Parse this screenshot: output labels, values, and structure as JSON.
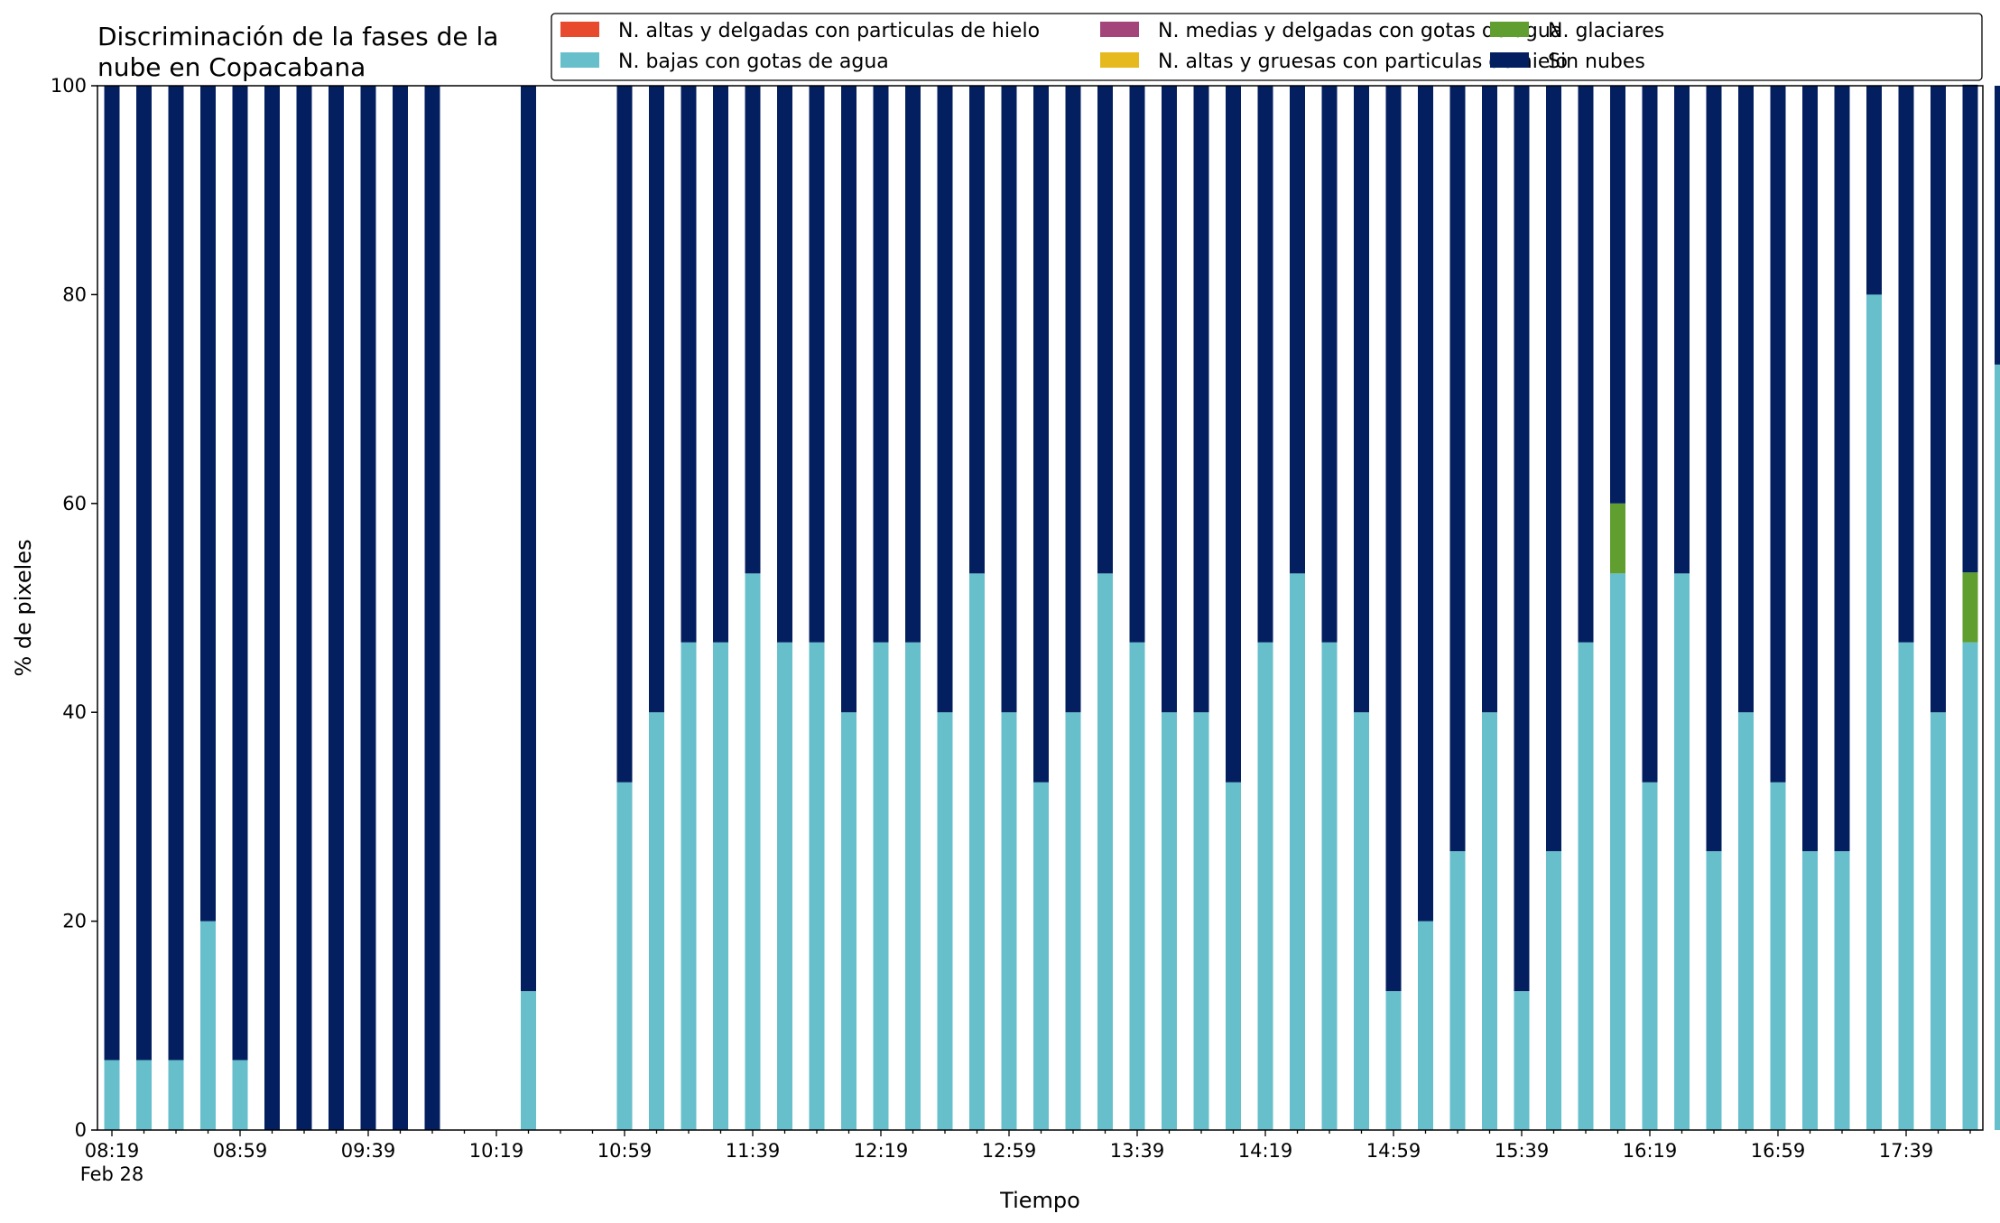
{
  "chart_data": {
    "type": "bar",
    "stacked": true,
    "title_lines": [
      "Discriminación de la fases de la",
      "nube en Copacabana"
    ],
    "xlabel": "Tiempo",
    "ylabel": "% de pixeles",
    "ylim": [
      0,
      100
    ],
    "yticks": [
      0,
      20,
      40,
      60,
      80,
      100
    ],
    "x_start": "08:19",
    "x_step_minutes": 10,
    "x_first_label_date": "Feb 28",
    "xtick_labels": [
      "08:19",
      "08:59",
      "09:39",
      "10:19",
      "10:59",
      "11:39",
      "12:19",
      "12:59",
      "13:39",
      "14:19",
      "14:59",
      "15:39",
      "16:19",
      "16:59",
      "17:39"
    ],
    "legend_position": "top-right",
    "grid": false,
    "series": [
      {
        "name": "N. altas y delgadas con particulas de hielo",
        "color": "#e84a2d",
        "values": [
          0,
          0,
          0,
          0,
          0,
          0,
          0,
          0,
          0,
          0,
          0,
          0,
          0,
          0,
          0,
          0,
          0,
          0,
          0,
          0,
          0,
          0,
          0,
          0,
          0,
          0,
          0,
          0,
          0,
          0,
          0,
          0,
          0,
          0,
          0,
          0,
          0,
          0,
          0,
          0,
          0,
          0,
          0,
          0,
          0,
          0,
          0,
          0,
          0,
          0,
          0,
          0,
          0,
          0,
          0,
          0,
          0,
          0,
          0
        ]
      },
      {
        "name": "N. altas y gruesas con particulas de hielo",
        "color": "#e6b91e",
        "values": [
          0,
          0,
          0,
          0,
          0,
          0,
          0,
          0,
          0,
          0,
          0,
          0,
          0,
          0,
          0,
          0,
          0,
          0,
          0,
          0,
          0,
          0,
          0,
          0,
          0,
          0,
          0,
          0,
          0,
          0,
          0,
          0,
          0,
          0,
          0,
          0,
          0,
          0,
          0,
          0,
          0,
          0,
          0,
          0,
          0,
          0,
          0,
          0,
          0,
          0,
          0,
          0,
          0,
          0,
          0,
          0,
          0,
          0,
          0
        ]
      },
      {
        "name": "N. bajas con gotas de agua",
        "color": "#67bfcb",
        "values": [
          6.7,
          6.7,
          6.7,
          20,
          6.7,
          0,
          0,
          0,
          0,
          0,
          0,
          null,
          null,
          13.3,
          null,
          null,
          33.3,
          40,
          46.7,
          46.7,
          53.3,
          46.7,
          46.7,
          40,
          46.7,
          46.7,
          40,
          53.3,
          40,
          33.3,
          40,
          53.3,
          46.7,
          40,
          40,
          33.3,
          46.7,
          53.3,
          46.7,
          40,
          13.3,
          20,
          26.7,
          40,
          13.3,
          26.7,
          46.7,
          53.3,
          33.3,
          53.3,
          26.7,
          40,
          33.3,
          26.7,
          26.7,
          80,
          46.7,
          40,
          46.7,
          73.3
        ]
      },
      {
        "name": "N. glaciares",
        "color": "#5f9e2f",
        "values": [
          0,
          0,
          0,
          0,
          0,
          0,
          0,
          0,
          0,
          0,
          0,
          null,
          null,
          0,
          null,
          null,
          0,
          0,
          0,
          0,
          0,
          0,
          0,
          0,
          0,
          0,
          0,
          0,
          0,
          0,
          0,
          0,
          0,
          0,
          0,
          0,
          0,
          0,
          0,
          0,
          0,
          0,
          0,
          0,
          0,
          0,
          0,
          6.7,
          0,
          0,
          0,
          0,
          0,
          0,
          0,
          0,
          0,
          0,
          6.7,
          0
        ]
      },
      {
        "name": "N. medias y delgadas con gotas de agua",
        "color": "#a3457a",
        "values": [
          0,
          0,
          0,
          0,
          0,
          0,
          0,
          0,
          0,
          0,
          0,
          null,
          null,
          0,
          null,
          null,
          0,
          0,
          0,
          0,
          0,
          0,
          0,
          0,
          0,
          0,
          0,
          0,
          0,
          0,
          0,
          0,
          0,
          0,
          0,
          0,
          0,
          0,
          0,
          0,
          0,
          0,
          0,
          0,
          0,
          0,
          0,
          0,
          0,
          0,
          0,
          0,
          0,
          0,
          0,
          0,
          0,
          0,
          0,
          0
        ]
      },
      {
        "name": "Sin nubes",
        "color": "#041f60",
        "values": [
          93.3,
          93.3,
          93.3,
          80,
          93.3,
          100,
          100,
          100,
          100,
          100,
          100,
          null,
          null,
          86.7,
          null,
          null,
          66.7,
          60,
          53.3,
          53.3,
          46.7,
          53.3,
          53.3,
          60,
          53.3,
          53.3,
          60,
          46.7,
          60,
          66.7,
          60,
          46.7,
          53.3,
          60,
          60,
          66.7,
          53.3,
          46.7,
          53.3,
          60,
          86.7,
          80,
          73.3,
          60,
          86.7,
          73.3,
          53.3,
          40,
          66.7,
          46.7,
          73.3,
          60,
          66.7,
          73.3,
          73.3,
          20,
          53.3,
          60,
          46.7,
          26.7
        ]
      }
    ],
    "legend_order": [
      0,
      2,
      4,
      1,
      3,
      5
    ]
  }
}
